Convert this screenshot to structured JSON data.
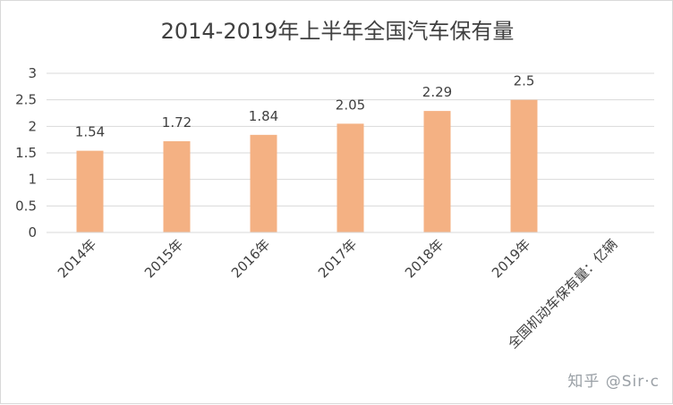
{
  "chart_data": {
    "type": "bar",
    "title": "2014-2019年上半年全国汽车保有量",
    "categories": [
      "2014年",
      "2015年",
      "2016年",
      "2017年",
      "2018年",
      "2019年",
      "全国机动车保有量：亿辆"
    ],
    "values": [
      1.54,
      1.72,
      1.84,
      2.05,
      2.29,
      2.5,
      null
    ],
    "data_labels": [
      "1.54",
      "1.72",
      "1.84",
      "2.05",
      "2.29",
      "2.5",
      ""
    ],
    "y_ticks": [
      "0",
      "0.5",
      "1",
      "1.5",
      "2",
      "2.5",
      "3"
    ],
    "ylim": [
      0,
      3
    ],
    "grid": true,
    "legend": "none",
    "bar_color": "#f4b183",
    "grid_color": "#d9d9d9"
  },
  "watermark": "知乎 @Sir·c"
}
